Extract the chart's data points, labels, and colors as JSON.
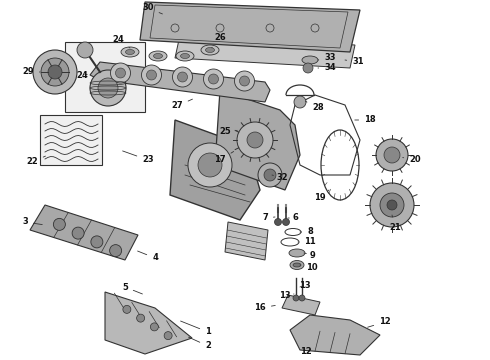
{
  "background_color": "#ffffff",
  "line_color": "#333333",
  "label_fontsize": 6.0,
  "label_color": "#111111",
  "gray_fill": "#b0b0b0",
  "gray_mid": "#888888",
  "gray_light": "#d0d0d0",
  "gray_dark": "#555555"
}
